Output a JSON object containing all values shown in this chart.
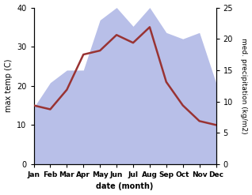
{
  "months": [
    "Jan",
    "Feb",
    "Mar",
    "Apr",
    "May",
    "Jun",
    "Jul",
    "Aug",
    "Sep",
    "Oct",
    "Nov",
    "Dec"
  ],
  "month_x": [
    1,
    2,
    3,
    4,
    5,
    6,
    7,
    8,
    9,
    10,
    11,
    12
  ],
  "temp_max": [
    15,
    14,
    19,
    28,
    29,
    33,
    31,
    35,
    21,
    15,
    11,
    10
  ],
  "precip": [
    9,
    13,
    15,
    15,
    23,
    25,
    22,
    25,
    21,
    20,
    21,
    13
  ],
  "temp_ylim": [
    0,
    40
  ],
  "precip_ylim": [
    0,
    25
  ],
  "temp_color": "#993333",
  "precip_fill_color": "#b8bfe8",
  "xlabel": "date (month)",
  "ylabel_left": "max temp (C)",
  "ylabel_right": "med. precipitation (kg/m2)",
  "bg_color": "#ffffff",
  "figsize": [
    3.18,
    2.47
  ],
  "dpi": 100
}
